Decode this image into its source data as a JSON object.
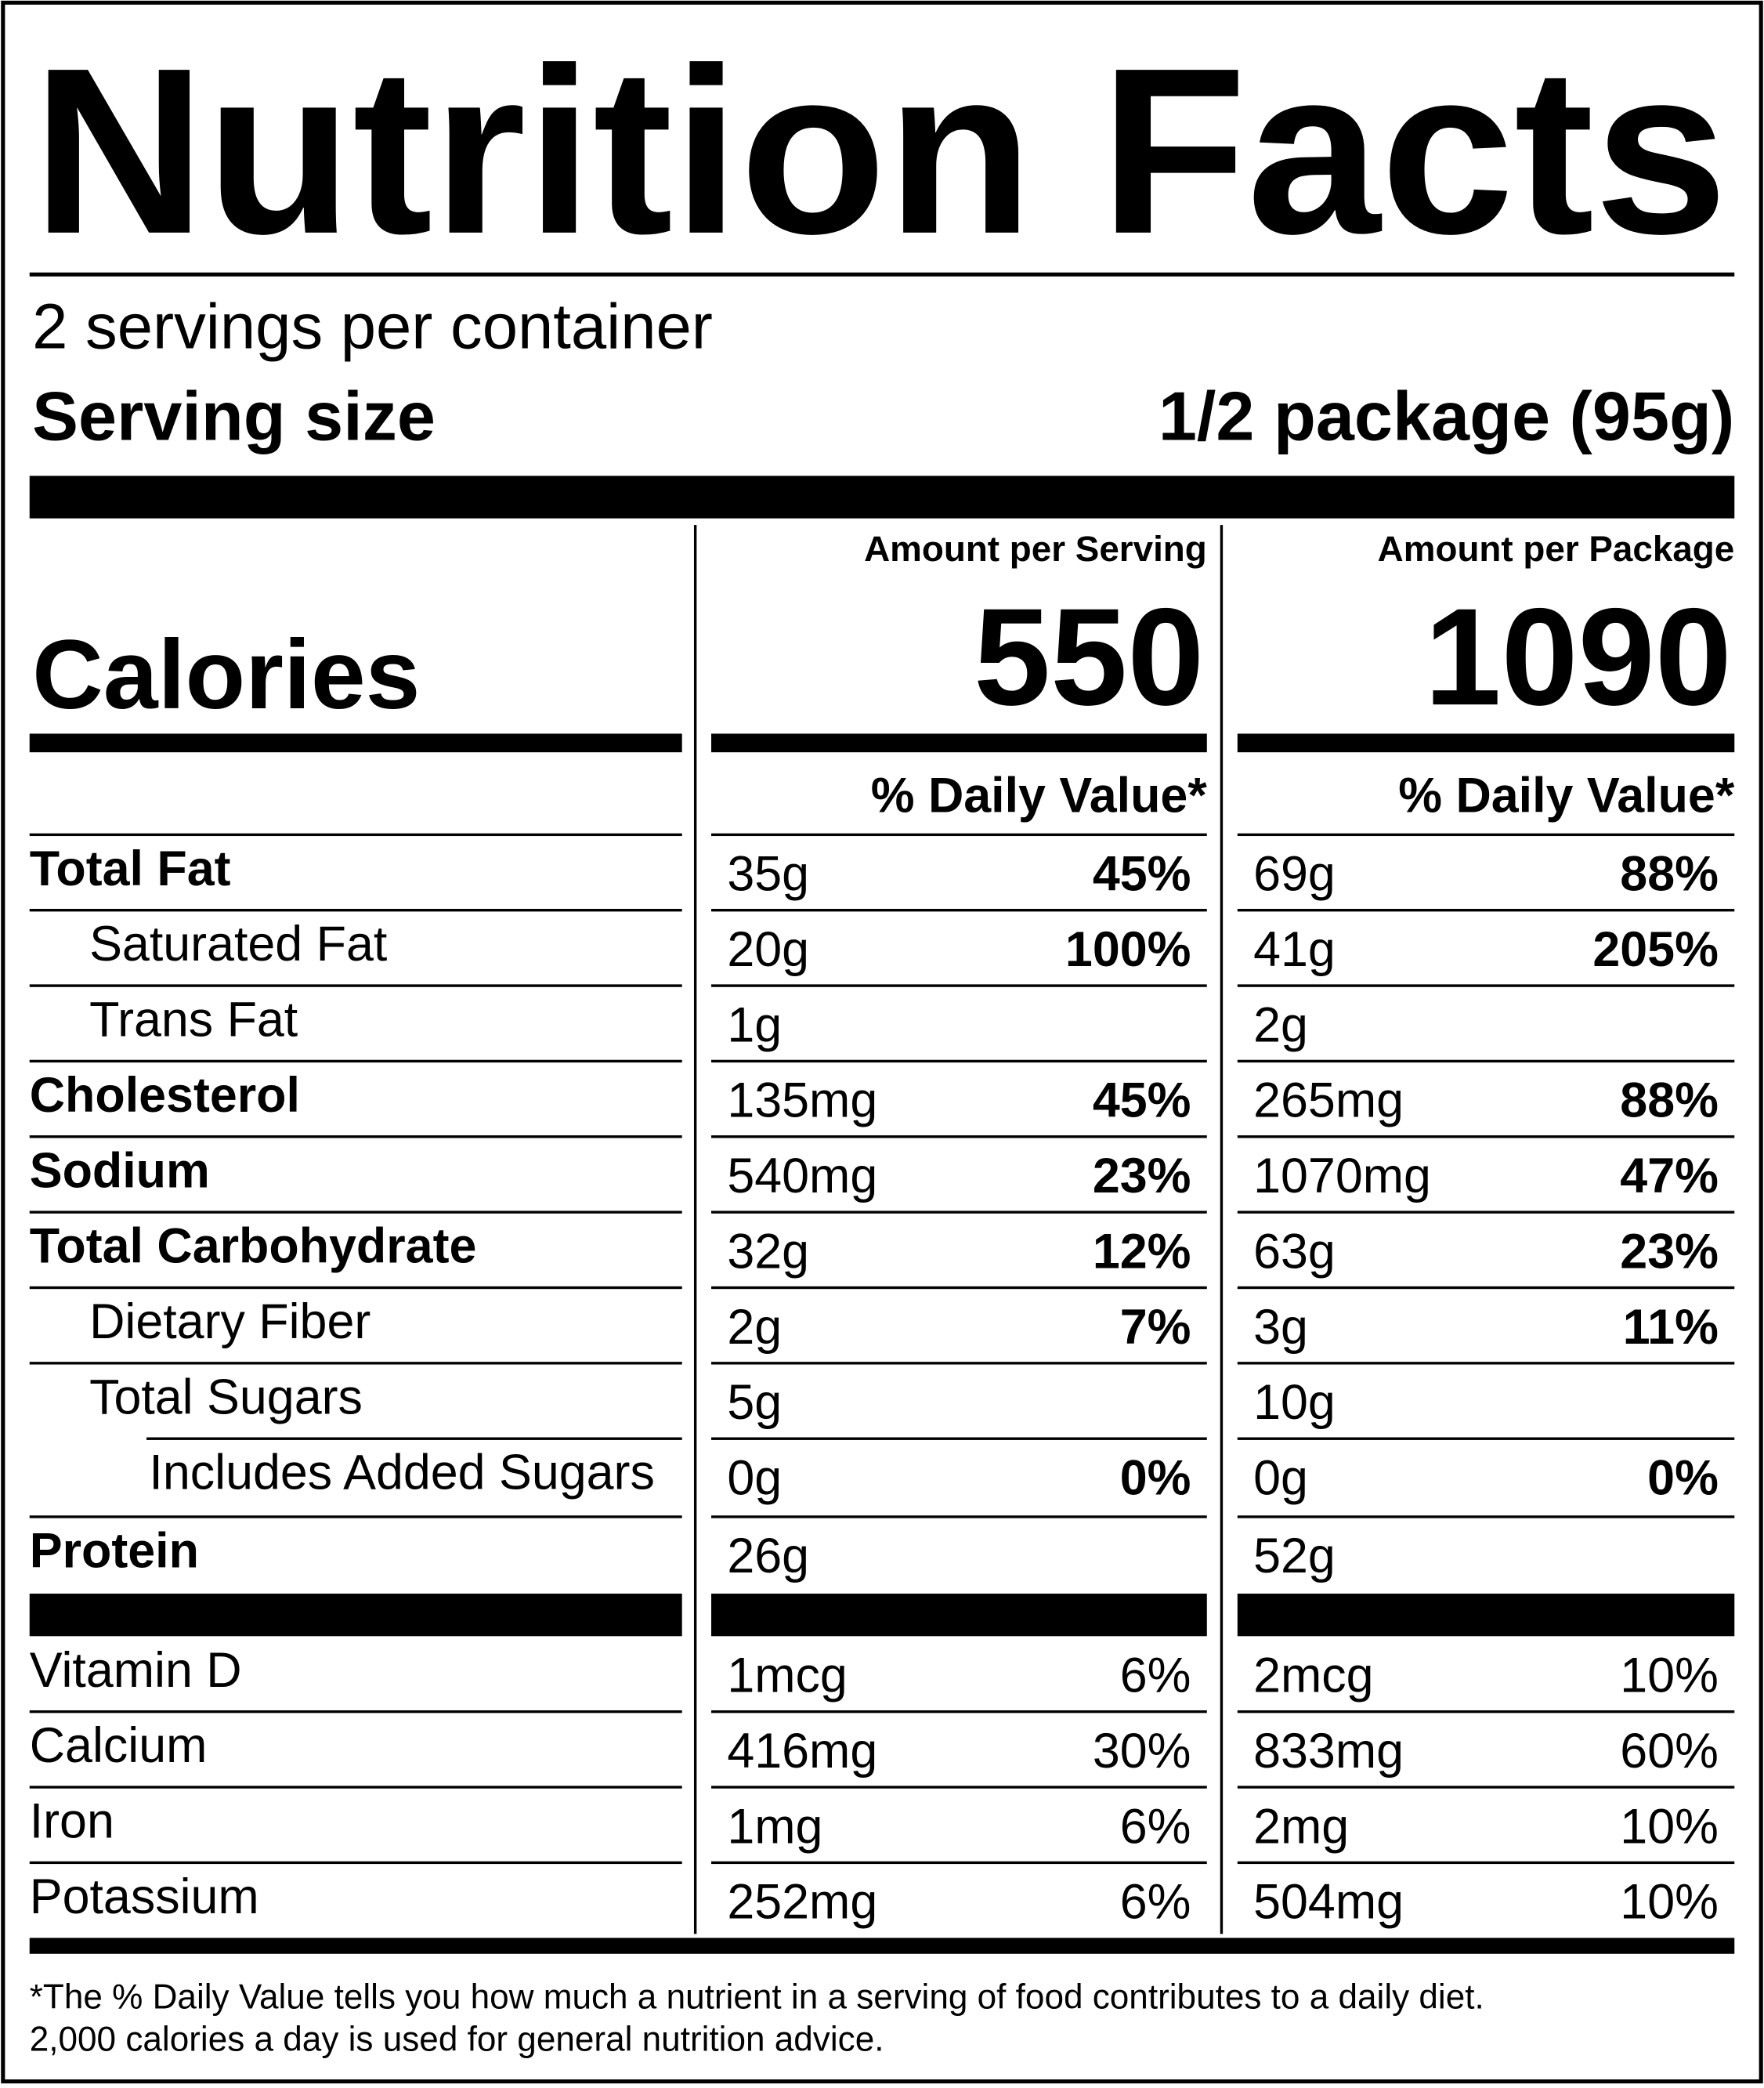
{
  "title": "Nutrition Facts",
  "servings": "2 servings per container",
  "serving_size": {
    "label": "Serving size",
    "value": "1/2 package (95g)"
  },
  "calories_label": "Calories",
  "columns": [
    {
      "header": "Amount per Serving",
      "calories": "550",
      "dv_header": "% Daily Value*"
    },
    {
      "header": "Amount per Package",
      "calories": "1090",
      "dv_header": "% Daily Value*"
    }
  ],
  "nutrients": [
    {
      "name": "Total Fat",
      "bold": true,
      "level": 0,
      "values": [
        [
          "35g",
          "45%"
        ],
        [
          "69g",
          "88%"
        ]
      ]
    },
    {
      "name": "Saturated Fat",
      "bold": false,
      "level": 1,
      "values": [
        [
          "20g",
          "100%"
        ],
        [
          "41g",
          "205%"
        ]
      ]
    },
    {
      "name": "Trans Fat",
      "bold": false,
      "level": 1,
      "values": [
        [
          "1g",
          null
        ],
        [
          "2g",
          null
        ]
      ]
    },
    {
      "name": "Cholesterol",
      "bold": true,
      "level": 0,
      "values": [
        [
          "135mg",
          "45%"
        ],
        [
          "265mg",
          "88%"
        ]
      ]
    },
    {
      "name": "Sodium",
      "bold": true,
      "level": 0,
      "values": [
        [
          "540mg",
          "23%"
        ],
        [
          "1070mg",
          "47%"
        ]
      ]
    },
    {
      "name": "Total Carbohydrate",
      "bold": true,
      "level": 0,
      "values": [
        [
          "32g",
          "12%"
        ],
        [
          "63g",
          "23%"
        ]
      ]
    },
    {
      "name": "Dietary Fiber",
      "bold": false,
      "level": 1,
      "values": [
        [
          "2g",
          "7%"
        ],
        [
          "3g",
          "11%"
        ]
      ]
    },
    {
      "name": "Total Sugars",
      "bold": false,
      "level": 1,
      "values": [
        [
          "5g",
          null
        ],
        [
          "10g",
          null
        ]
      ]
    },
    {
      "name": "Includes Added Sugars",
      "bold": false,
      "level": 2,
      "values": [
        [
          "0g",
          "0%"
        ],
        [
          "0g",
          "0%"
        ]
      ]
    },
    {
      "name": "Protein",
      "bold": true,
      "level": 0,
      "values": [
        [
          "26g",
          null
        ],
        [
          "52g",
          null
        ]
      ]
    }
  ],
  "vitamins": [
    {
      "name": "Vitamin D",
      "values": [
        [
          "1mcg",
          "6%"
        ],
        [
          "2mcg",
          "10%"
        ]
      ]
    },
    {
      "name": "Calcium",
      "values": [
        [
          "416mg",
          "30%"
        ],
        [
          "833mg",
          "60%"
        ]
      ]
    },
    {
      "name": "Iron",
      "values": [
        [
          "1mg",
          "6%"
        ],
        [
          "2mg",
          "10%"
        ]
      ]
    },
    {
      "name": "Potassium",
      "values": [
        [
          "252mg",
          "6%"
        ],
        [
          "504mg",
          "10%"
        ]
      ]
    }
  ],
  "footnote": [
    "*The % Daily Value tells you how much a nutrient in a serving of food contributes to a daily diet.",
    "2,000 calories a day is used for general nutrition advice."
  ]
}
